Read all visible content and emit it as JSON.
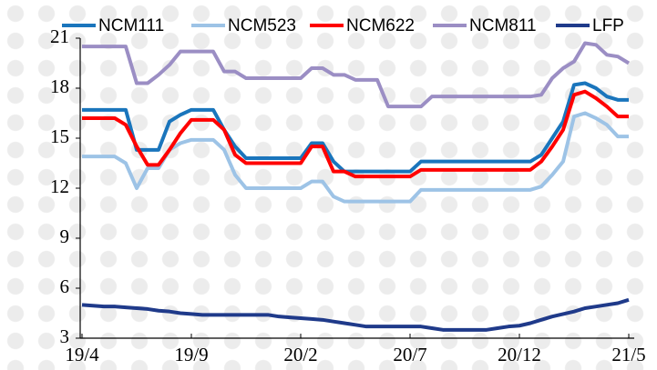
{
  "chart_data": {
    "type": "line",
    "categories": [
      "19/4",
      null,
      null,
      null,
      null,
      null,
      null,
      null,
      null,
      null,
      "19/9",
      null,
      null,
      null,
      null,
      null,
      null,
      null,
      null,
      null,
      "20/2",
      null,
      null,
      null,
      null,
      null,
      null,
      null,
      null,
      null,
      "20/7",
      null,
      null,
      null,
      null,
      null,
      null,
      null,
      null,
      null,
      "20/12",
      null,
      null,
      null,
      null,
      null,
      null,
      null,
      null,
      null,
      "21/5"
    ],
    "series": [
      {
        "name": "NCM111",
        "color": "#1a75bc",
        "values": [
          16.7,
          16.7,
          16.7,
          16.7,
          16.7,
          14.3,
          14.3,
          14.3,
          16.0,
          16.4,
          16.7,
          16.7,
          16.7,
          15.5,
          14.5,
          13.8,
          13.8,
          13.8,
          13.8,
          13.8,
          13.8,
          14.7,
          14.7,
          13.6,
          13.0,
          13.0,
          13.0,
          13.0,
          13.0,
          13.0,
          13.0,
          13.6,
          13.6,
          13.6,
          13.6,
          13.6,
          13.6,
          13.6,
          13.6,
          13.6,
          13.6,
          13.6,
          14.0,
          15.0,
          16.0,
          18.2,
          18.3,
          18.0,
          17.5,
          17.3,
          17.3
        ]
      },
      {
        "name": "NCM523",
        "color": "#9dc3e6",
        "values": [
          13.9,
          13.9,
          13.9,
          13.9,
          13.5,
          12.0,
          13.2,
          13.2,
          14.3,
          14.7,
          14.9,
          14.9,
          14.9,
          14.3,
          12.8,
          12.0,
          12.0,
          12.0,
          12.0,
          12.0,
          12.0,
          12.4,
          12.4,
          11.5,
          11.2,
          11.2,
          11.2,
          11.2,
          11.2,
          11.2,
          11.2,
          11.9,
          11.9,
          11.9,
          11.9,
          11.9,
          11.9,
          11.9,
          11.9,
          11.9,
          11.9,
          11.9,
          12.1,
          12.8,
          13.6,
          16.3,
          16.5,
          16.2,
          15.8,
          15.1,
          15.1
        ]
      },
      {
        "name": "NCM622",
        "color": "#ff0000",
        "values": [
          16.2,
          16.2,
          16.2,
          16.2,
          15.8,
          14.5,
          13.4,
          13.4,
          14.3,
          15.3,
          16.1,
          16.1,
          16.1,
          15.5,
          14.0,
          13.5,
          13.5,
          13.5,
          13.5,
          13.5,
          13.5,
          14.5,
          14.5,
          13.0,
          13.0,
          12.7,
          12.7,
          12.7,
          12.7,
          12.7,
          12.7,
          13.1,
          13.1,
          13.1,
          13.1,
          13.1,
          13.1,
          13.1,
          13.1,
          13.1,
          13.1,
          13.1,
          13.6,
          14.5,
          15.5,
          17.6,
          17.8,
          17.4,
          16.9,
          16.3,
          16.3
        ]
      },
      {
        "name": "NCM811",
        "color": "#9b8ec4",
        "values": [
          20.5,
          20.5,
          20.5,
          20.5,
          20.5,
          18.3,
          18.3,
          18.8,
          19.4,
          20.2,
          20.2,
          20.2,
          20.2,
          19.0,
          19.0,
          18.6,
          18.6,
          18.6,
          18.6,
          18.6,
          18.6,
          19.2,
          19.2,
          18.8,
          18.8,
          18.5,
          18.5,
          18.5,
          16.9,
          16.9,
          16.9,
          16.9,
          17.5,
          17.5,
          17.5,
          17.5,
          17.5,
          17.5,
          17.5,
          17.5,
          17.5,
          17.5,
          17.6,
          18.6,
          19.2,
          19.6,
          20.7,
          20.6,
          20.0,
          19.9,
          19.5
        ]
      },
      {
        "name": "LFP",
        "color": "#1f3a8a",
        "values": [
          5.0,
          4.95,
          4.9,
          4.9,
          4.85,
          4.8,
          4.75,
          4.65,
          4.6,
          4.5,
          4.45,
          4.4,
          4.4,
          4.4,
          4.4,
          4.4,
          4.4,
          4.4,
          4.3,
          4.25,
          4.2,
          4.15,
          4.1,
          4.0,
          3.9,
          3.8,
          3.7,
          3.7,
          3.7,
          3.7,
          3.7,
          3.7,
          3.6,
          3.5,
          3.5,
          3.5,
          3.5,
          3.5,
          3.6,
          3.7,
          3.75,
          3.9,
          4.1,
          4.3,
          4.45,
          4.6,
          4.8,
          4.9,
          5.0,
          5.1,
          5.3
        ]
      }
    ],
    "ylim": [
      3,
      21
    ],
    "yticks": [
      3,
      6,
      9,
      12,
      15,
      18,
      21
    ],
    "grid": false,
    "legend": "top"
  }
}
